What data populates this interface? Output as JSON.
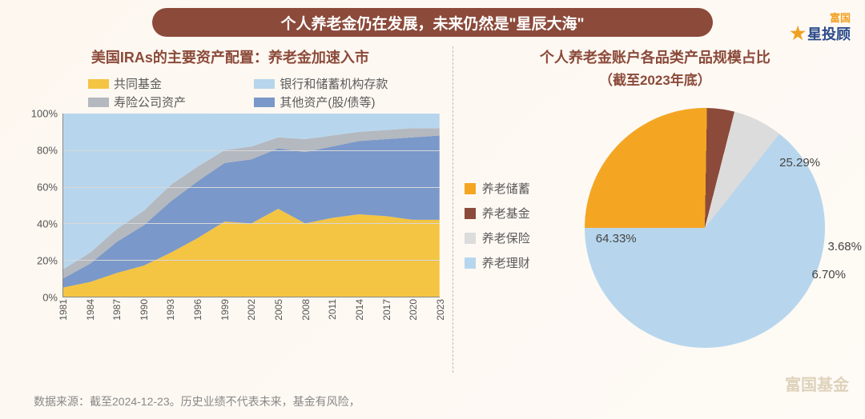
{
  "header": {
    "title": "个人养老金仍在发展，未来仍然是\"星辰大海\""
  },
  "logo_top": {
    "line1": "富国",
    "line2": "星投顾"
  },
  "logo_bottom": "富国基金",
  "footer": "数据来源：截至2024-12-23。历史业绩不代表未来，基金有风险，",
  "area_chart": {
    "type": "area-stacked-100",
    "title": "美国IRAs的主要资产配置：养老金加速入市",
    "legend": [
      {
        "label": "共同基金",
        "color": "#f4c443"
      },
      {
        "label": "银行和储蓄机构存款",
        "color": "#b7d6ed"
      },
      {
        "label": "寿险公司资产",
        "color": "#b4b8bf"
      },
      {
        "label": "其他资产(股/债等)",
        "color": "#7a98c9"
      }
    ],
    "y_ticks": [
      0,
      20,
      40,
      60,
      80,
      100
    ],
    "y_suffix": "%",
    "x_labels": [
      1981,
      1984,
      1987,
      1990,
      1993,
      1996,
      1999,
      2002,
      2005,
      2008,
      2011,
      2014,
      2017,
      2020,
      2023
    ],
    "x_start": 1981,
    "x_end": 2023,
    "series_order_bottom_to_top": [
      "mutual",
      "other",
      "insurance",
      "bank"
    ],
    "colors": {
      "mutual": "#f4c443",
      "other": "#7a98c9",
      "insurance": "#b4b8bf",
      "bank": "#b7d6ed"
    },
    "data": [
      {
        "year": 1981,
        "mutual": 5,
        "other": 5,
        "insurance": 5,
        "bank": 85
      },
      {
        "year": 1984,
        "mutual": 8,
        "other": 10,
        "insurance": 6,
        "bank": 76
      },
      {
        "year": 1987,
        "mutual": 13,
        "other": 17,
        "insurance": 7,
        "bank": 63
      },
      {
        "year": 1990,
        "mutual": 17,
        "other": 22,
        "insurance": 8,
        "bank": 53
      },
      {
        "year": 1993,
        "mutual": 24,
        "other": 28,
        "insurance": 9,
        "bank": 39
      },
      {
        "year": 1996,
        "mutual": 32,
        "other": 31,
        "insurance": 8,
        "bank": 29
      },
      {
        "year": 1999,
        "mutual": 41,
        "other": 32,
        "insurance": 7,
        "bank": 20
      },
      {
        "year": 2002,
        "mutual": 40,
        "other": 35,
        "insurance": 7,
        "bank": 18
      },
      {
        "year": 2005,
        "mutual": 48,
        "other": 33,
        "insurance": 6,
        "bank": 13
      },
      {
        "year": 2008,
        "mutual": 40,
        "other": 39,
        "insurance": 7,
        "bank": 14
      },
      {
        "year": 2011,
        "mutual": 43,
        "other": 39,
        "insurance": 6,
        "bank": 12
      },
      {
        "year": 2014,
        "mutual": 45,
        "other": 40,
        "insurance": 5,
        "bank": 10
      },
      {
        "year": 2017,
        "mutual": 44,
        "other": 42,
        "insurance": 5,
        "bank": 9
      },
      {
        "year": 2020,
        "mutual": 42,
        "other": 45,
        "insurance": 5,
        "bank": 8
      },
      {
        "year": 2023,
        "mutual": 42,
        "other": 46,
        "insurance": 4,
        "bank": 8
      }
    ],
    "background": "#ffffff",
    "grid_color": "#d8d8d8"
  },
  "pie_chart": {
    "type": "pie",
    "title_line1": "个人养老金账户各品类产品规模占比",
    "title_line2": "（截至2023年底）",
    "legend": [
      {
        "key": "savings",
        "label": "养老储蓄",
        "color": "#f4a623",
        "value": 25.29
      },
      {
        "key": "fund",
        "label": "养老基金",
        "color": "#8b4a3a",
        "value": 3.68
      },
      {
        "key": "insurance",
        "label": "养老保险",
        "color": "#dcdcdc",
        "value": 6.7
      },
      {
        "key": "wealth",
        "label": "养老理财",
        "color": "#b7d6ed",
        "value": 64.33
      }
    ],
    "start_angle_deg": -90,
    "label_suffix": "%",
    "labels": {
      "savings": "25.29%",
      "fund": "3.68%",
      "insurance": "6.70%",
      "wealth": "64.33%"
    }
  }
}
